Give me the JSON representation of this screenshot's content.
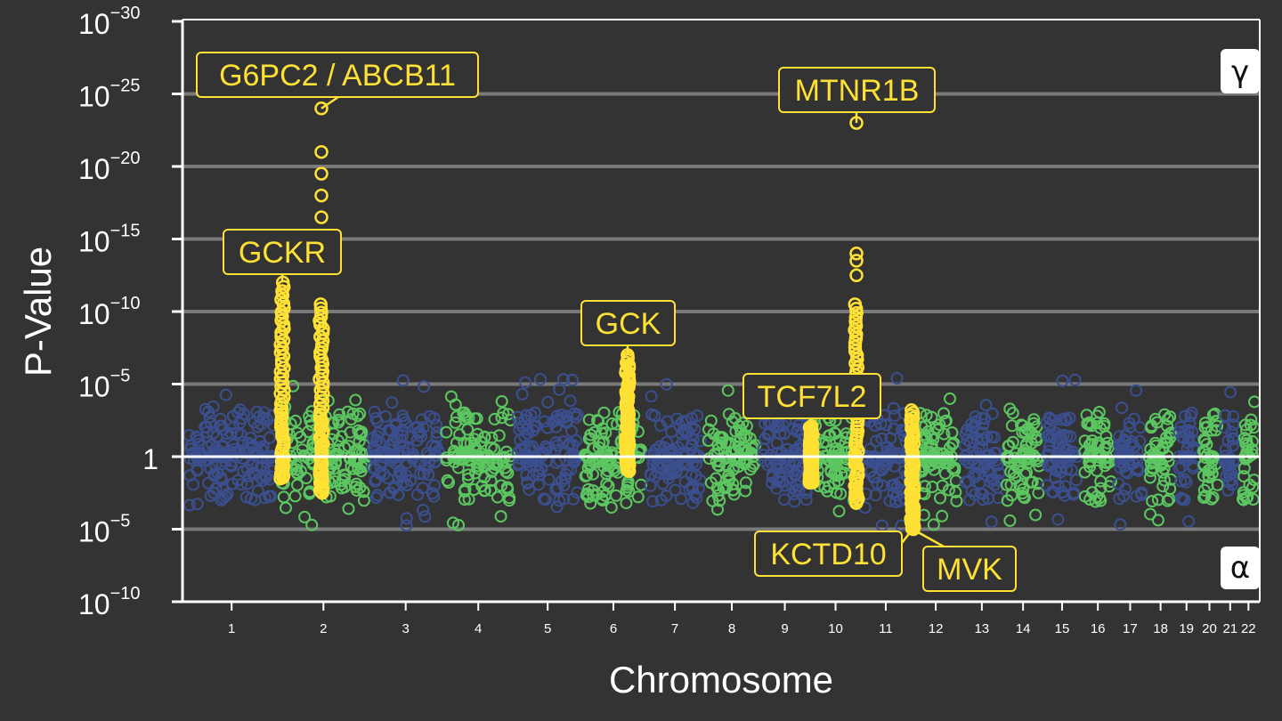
{
  "chart_data": {
    "type": "scatter",
    "subtype": "miami-manhattan",
    "xlabel": "Chromosome",
    "ylabel": "P-Value",
    "y_scale": "log10, upward = γ association, downward = α association",
    "y_ticks": [
      {
        "base": "10",
        "exp": "−30",
        "value": 30
      },
      {
        "base": "10",
        "exp": "−25",
        "value": 25
      },
      {
        "base": "10",
        "exp": "−20",
        "value": 20
      },
      {
        "base": "10",
        "exp": "−15",
        "value": 15
      },
      {
        "base": "10",
        "exp": "−10",
        "value": 10
      },
      {
        "base": "10",
        "exp": "−5",
        "value": 5
      },
      {
        "base": "1",
        "exp": "",
        "value": 0
      },
      {
        "base": "10",
        "exp": "−5",
        "value": -5
      },
      {
        "base": "10",
        "exp": "−10",
        "value": -10
      }
    ],
    "ylim": [
      -10,
      30
    ],
    "grid": true,
    "colors": {
      "odd_chromosome": "#3b4f8f",
      "even_chromosome": "#5cc760",
      "highlight": "#ffe135",
      "background": "#333333",
      "axis": "#ffffff",
      "gridline": "#7a7a7a"
    },
    "chromosomes": [
      "1",
      "2",
      "3",
      "4",
      "5",
      "6",
      "7",
      "8",
      "9",
      "10",
      "11",
      "12",
      "13",
      "14",
      "15",
      "16",
      "17",
      "18",
      "19",
      "20",
      "21",
      "22"
    ],
    "upper_panel_label": "γ",
    "lower_panel_label": "α",
    "annotations": [
      {
        "gene": "G6PC2 / ABCB11",
        "chromosome": "2",
        "peak_log10p": 24,
        "direction": "γ"
      },
      {
        "gene": "GCKR",
        "chromosome": "2",
        "peak_log10p": 12,
        "direction": "γ"
      },
      {
        "gene": "GCK",
        "chromosome": "7",
        "peak_log10p": 7,
        "direction": "γ"
      },
      {
        "gene": "MTNR1B",
        "chromosome": "11",
        "peak_log10p": 23,
        "direction": "γ"
      },
      {
        "gene": "TCF7L2",
        "chromosome": "10",
        "peak_log10p": 2,
        "direction": "γ"
      },
      {
        "gene": "KCTD10",
        "chromosome": "12",
        "peak_log10p": -5,
        "direction": "α"
      },
      {
        "gene": "MVK",
        "chromosome": "12",
        "peak_log10p": -5,
        "direction": "α"
      }
    ]
  }
}
